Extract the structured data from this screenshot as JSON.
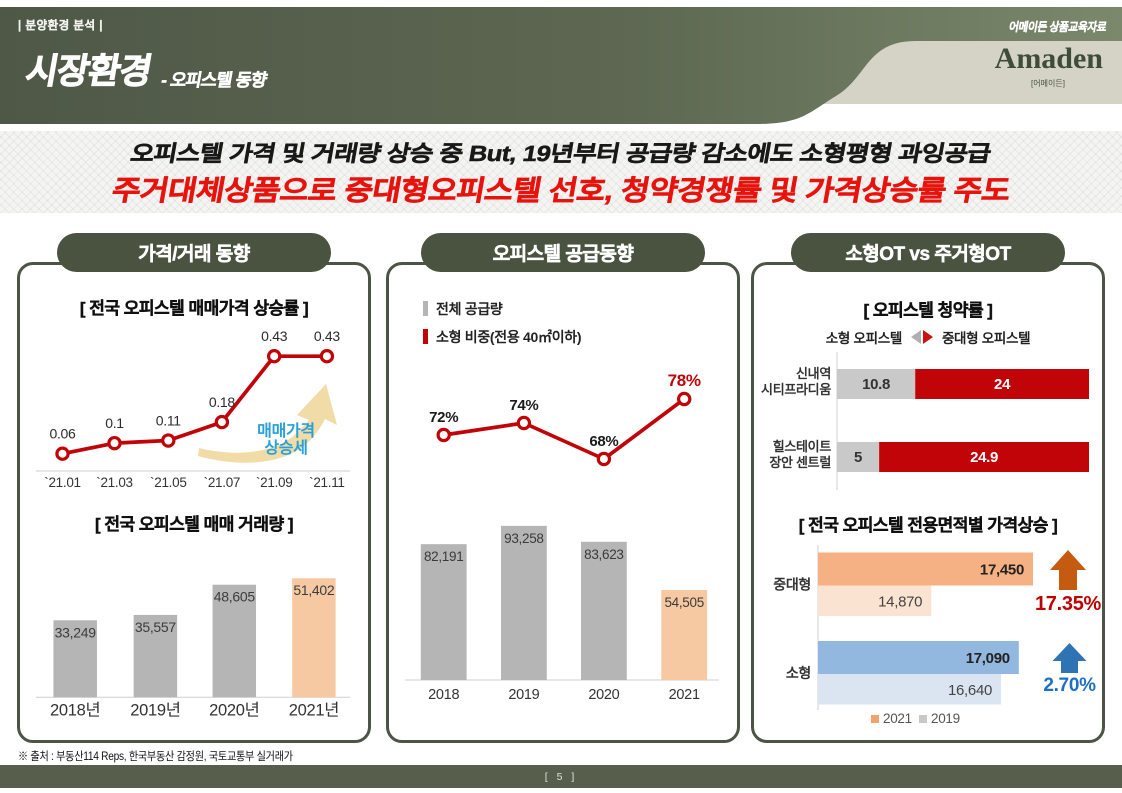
{
  "slide": {
    "header": {
      "eyebrow": "| 분양환경 분석 |",
      "title": "시장환경",
      "subtitle": "- 오피스텔 동향",
      "tagline": "어메이든 상품교육자료",
      "logo_text": "Amaden",
      "logo_sub": "[어메이든]"
    },
    "headline": {
      "line1": "오피스텔 가격 및 거래량 상승 중 But, 19년부터 공급량 감소에도 소형평형 과잉공급",
      "line2": "주거대체상품으로 중대형오피스텔 선호, 청약경쟁률 및 가격상승률 주도"
    },
    "panels": [
      {
        "title": "가격/거래 동향"
      },
      {
        "title": "오피스텔 공급동향"
      },
      {
        "title": "소형OT vs 주거형OT"
      }
    ],
    "footer": {
      "source": "※ 출처 : 부동산114 Reps, 한국부동산 감정원, 국토교통부 실거래가",
      "page": "[ 5 ]"
    }
  },
  "colors": {
    "olive_dark": "#4a5240",
    "header_gradient_left": "#4f5847",
    "header_gradient_right": "#7b886c",
    "beige": "#d4d3c5",
    "logo_green": "#3f4c3a",
    "headline_red": "#e8130d",
    "chart_red": "#c00408",
    "gray_bar": "#b5b5b5",
    "peach_bar": "#f7c9a3",
    "stack_gray": "#c9c9c9",
    "annotation_blue": "#29a0d8",
    "annotation_tan": "#f1dca7"
  },
  "chart_data": [
    {
      "id": "price-trend-line",
      "type": "line",
      "title": "[ 전국 오피스텔 매매가격 상승률 ]",
      "x": [
        "`21.01",
        "`21.03",
        "`21.05",
        "`21.07",
        "`21.09",
        "`21.11"
      ],
      "values": [
        0.06,
        0.1,
        0.11,
        0.18,
        0.43,
        0.43
      ],
      "labels": [
        "0.06",
        "0.1",
        "0.11",
        "0.18",
        "0.43",
        "0.43"
      ],
      "ylim": [
        0,
        0.5
      ],
      "line_color": "#c00408",
      "annotation": {
        "lines": [
          "매매가격",
          "상승세"
        ],
        "color": "#29a0d8",
        "arrow_color": "#f1dca7"
      }
    },
    {
      "id": "transaction-volume-bar",
      "type": "bar",
      "title": "[ 전국 오피스텔 매매 거래량 ]",
      "categories": [
        "2018년",
        "2019년",
        "2020년",
        "2021년"
      ],
      "values": [
        33249,
        35557,
        48605,
        51402
      ],
      "labels": [
        "33,249",
        "35,557",
        "48,605",
        "51,402"
      ],
      "ylim": [
        0,
        55000
      ],
      "bar_colors": [
        "#b5b5b5",
        "#b5b5b5",
        "#b5b5b5",
        "#f7c9a3"
      ]
    },
    {
      "id": "supply-trend-combo",
      "type": "combo",
      "legend": [
        {
          "label": "전체 공급량",
          "color": "#b5b5b5"
        },
        {
          "label": "소형 비중(전용 40㎡이하)",
          "color": "#c00408"
        }
      ],
      "categories": [
        "2018",
        "2019",
        "2020",
        "2021"
      ],
      "bars": {
        "values": [
          82191,
          93258,
          83623,
          54505
        ],
        "labels": [
          "82,191",
          "93,258",
          "83,623",
          "54,505"
        ],
        "colors": [
          "#b5b5b5",
          "#b5b5b5",
          "#b5b5b5",
          "#f7c9a3"
        ],
        "ylim": [
          0,
          95000
        ]
      },
      "line": {
        "values": [
          72,
          74,
          68,
          78
        ],
        "labels": [
          "72%",
          "74%",
          "68%",
          "78%"
        ],
        "color": "#c00408",
        "highlight_last": true
      }
    },
    {
      "id": "subscription-rate-stacked",
      "type": "stacked_h",
      "title": "[ 오피스텔 청약률 ]",
      "legend": {
        "left": "소형 오피스텔",
        "right": "중대형 오피스텔"
      },
      "rows": [
        {
          "label_lines": [
            "신내역",
            "시티프라디움"
          ],
          "values": [
            10.8,
            24
          ],
          "labels": [
            "10.8",
            "24"
          ]
        },
        {
          "label_lines": [
            "힐스테이트",
            "장안 센트럴"
          ],
          "values": [
            5,
            24.9
          ],
          "labels": [
            "5",
            "24.9"
          ]
        }
      ],
      "colors": [
        "#c9c9c9",
        "#c00408"
      ]
    },
    {
      "id": "price-growth-by-size",
      "type": "bar_h",
      "title": "[ 전국 오피스텔 전용면적별 가격상승 ]",
      "categories": [
        "중대형",
        "소형"
      ],
      "series": [
        {
          "name": "2021",
          "values": [
            17450,
            17090
          ],
          "labels": [
            "17,450",
            "17,090"
          ]
        },
        {
          "name": "2019",
          "values": [
            14870,
            16640
          ],
          "labels": [
            "14,870",
            "16,640"
          ]
        }
      ],
      "xlim": [
        12000,
        17500
      ],
      "group_colors": [
        [
          "#f5b183",
          "#fbe3d1"
        ],
        [
          "#92b8e0",
          "#dbe5f1"
        ]
      ],
      "deltas": [
        {
          "label": "17.35%",
          "text_color": "#c00000",
          "arrow_color": "#c55a11"
        },
        {
          "label": "2.70%",
          "text_color": "#1e6fc4",
          "arrow_color": "#2e74b5"
        }
      ],
      "legend": [
        {
          "label": "2021",
          "color": "#f0a46b"
        },
        {
          "label": "2019",
          "color": "#c9c9c9"
        }
      ]
    }
  ]
}
